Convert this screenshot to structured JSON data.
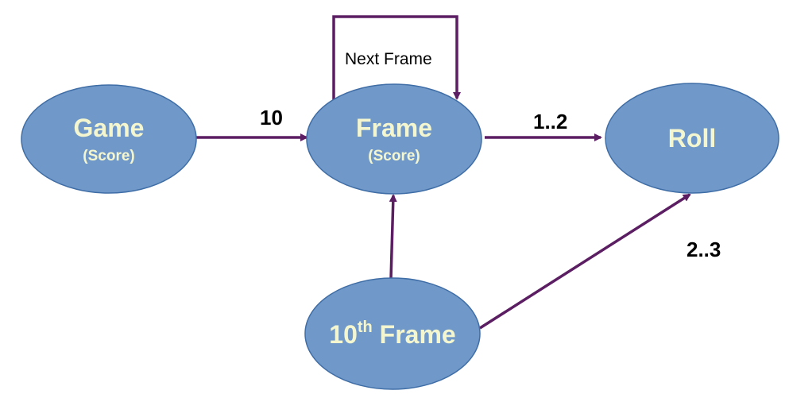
{
  "nodes": {
    "game": {
      "title": "Game",
      "subtitle": "(Score)"
    },
    "frame": {
      "title": "Frame",
      "subtitle": "(Score)"
    },
    "roll": {
      "title": "Roll"
    },
    "tenth_frame": {
      "title_number": "10",
      "title_sup": "th",
      "title_rest": " Frame"
    }
  },
  "edges": {
    "game_to_frame": "10",
    "frame_to_roll": "1..2",
    "frame_self": "Next Frame",
    "tenth_to_roll": "2..3"
  },
  "colors": {
    "node_fill": "#7099c9",
    "node_text": "#f4f6cf",
    "edge": "#5c1e62"
  }
}
